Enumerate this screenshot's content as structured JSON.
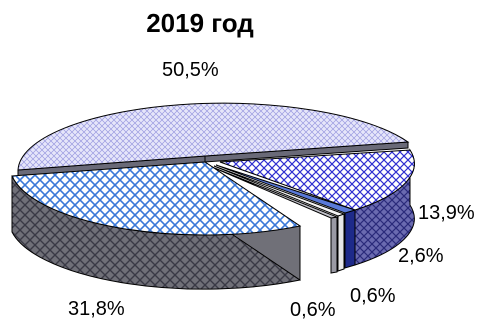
{
  "chart_data": {
    "type": "pie",
    "title": "2019 год",
    "slices": [
      {
        "value": 50.5,
        "label": "50,5%",
        "color": "#c8c8f0"
      },
      {
        "value": 13.9,
        "label": "13,9%",
        "color": "#3c3cd0"
      },
      {
        "value": 2.6,
        "label": "2,6%",
        "color": "#1e3a8a"
      },
      {
        "value": 0.6,
        "label": "0,6%",
        "color": "#e8e8e8"
      },
      {
        "value": 0.6,
        "label": "0,6%",
        "color": "#c0c0c0"
      },
      {
        "value": 31.8,
        "label": "31,8%",
        "color": "#6a8fd8"
      }
    ],
    "style": "3d-exploded"
  }
}
